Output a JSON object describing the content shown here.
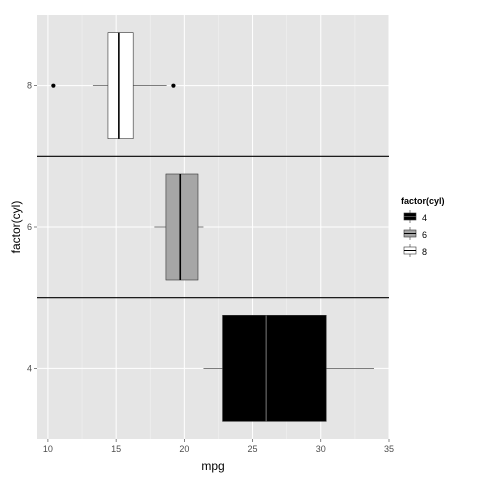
{
  "chart_data": {
    "type": "boxplot",
    "orientation": "horizontal",
    "xlabel": "mpg",
    "ylabel": "factor(cyl)",
    "xlim": [
      9.2,
      35.0
    ],
    "x_ticks": [
      10,
      15,
      20,
      25,
      30,
      35
    ],
    "x_tick_labels": [
      "10",
      "15",
      "20",
      "25",
      "30",
      "35"
    ],
    "categories": [
      "4",
      "6",
      "8"
    ],
    "grid": true,
    "legend": {
      "title": "factor(cyl)",
      "position": "right",
      "entries": [
        "4",
        "6",
        "8"
      ]
    },
    "reference_hlines_between_categories": true,
    "boxes": [
      {
        "category": "4",
        "whisker_low": 21.4,
        "q1": 22.8,
        "median": 26.0,
        "q3": 30.4,
        "whisker_high": 33.9,
        "outliers": [],
        "fill": "#000000"
      },
      {
        "category": "6",
        "whisker_low": 17.8,
        "q1": 18.65,
        "median": 19.7,
        "q3": 21.0,
        "whisker_high": 21.4,
        "outliers": [],
        "fill": "#a6a6a6"
      },
      {
        "category": "8",
        "whisker_low": 13.3,
        "q1": 14.4,
        "median": 15.2,
        "q3": 16.25,
        "whisker_high": 18.7,
        "outliers": [
          10.4,
          19.2
        ],
        "fill": "#ffffff"
      }
    ]
  }
}
